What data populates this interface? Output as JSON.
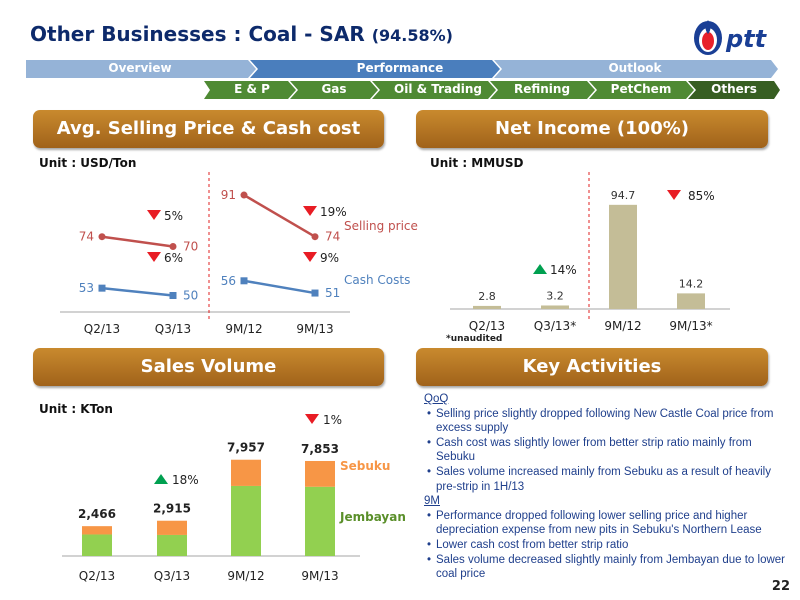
{
  "header": {
    "title": "Other Businesses : Coal - SAR",
    "title_pct": "(94.58%)",
    "logo_text": "ptt"
  },
  "nav": {
    "top": [
      "Overview",
      "Performance",
      "Outlook"
    ],
    "bottom": [
      "E & P",
      "Gas",
      "Oil & Trading",
      "Refining",
      "PetChem",
      "Others"
    ]
  },
  "sections": {
    "price": "Avg. Selling Price & Cash cost",
    "net": "Net Income (100%)",
    "sales": "Sales Volume",
    "key": "Key Activities"
  },
  "units": {
    "price": "Unit : USD/Ton",
    "net": "Unit : MMUSD",
    "sales": "Unit : KTon"
  },
  "chart_data": [
    {
      "type": "line",
      "title": "Avg. Selling Price & Cash cost",
      "unit": "Unit : USD/Ton",
      "categories": [
        "Q2/13",
        "Q3/13",
        "9M/12",
        "9M/13"
      ],
      "series": [
        {
          "name": "Selling price",
          "values": [
            74,
            70,
            91,
            74
          ]
        },
        {
          "name": "Cash Costs",
          "values": [
            53,
            50,
            56,
            51
          ]
        }
      ],
      "annotations": [
        {
          "text": "5%",
          "direction": "down"
        },
        {
          "text": "6%",
          "direction": "down"
        },
        {
          "text": "19%",
          "direction": "down"
        },
        {
          "text": "9%",
          "direction": "down"
        }
      ],
      "grid": false
    },
    {
      "type": "bar",
      "title": "Net Income (100%)",
      "unit": "Unit : MMUSD",
      "categories": [
        "Q2/13",
        "Q3/13*",
        "9M/12",
        "9M/13*"
      ],
      "values": [
        2.8,
        3.2,
        94.7,
        14.2
      ],
      "value_labels": [
        "2.8",
        "3.2",
        "94.7",
        "14.2"
      ],
      "annotations": [
        {
          "text": "14%",
          "direction": "up"
        },
        {
          "text": "85%",
          "direction": "down"
        }
      ],
      "footnote": "*unaudited"
    },
    {
      "type": "bar",
      "stacked": true,
      "title": "Sales Volume",
      "unit": "Unit : KTon",
      "categories": [
        "Q2/13",
        "Q3/13",
        "9M/12",
        "9M/13"
      ],
      "series": [
        {
          "name": "Jembayan",
          "values": [
            1780,
            1740,
            5790,
            5720
          ]
        },
        {
          "name": "Sebuku",
          "values": [
            686,
            1175,
            2167,
            2133
          ]
        }
      ],
      "totals": [
        "2,466",
        "2,915",
        "7,957",
        "7,853"
      ],
      "annotations": [
        {
          "text": "18%",
          "direction": "up"
        },
        {
          "text": "1%",
          "direction": "down"
        }
      ]
    }
  ],
  "key_activities": {
    "qoq_heading": "QoQ",
    "qoq": [
      "Selling price slightly dropped following New Castle Coal price from excess supply",
      "Cash cost was slightly lower from better strip ratio mainly from Sebuku",
      "Sales volume increased mainly from Sebuku as a result of heavily pre-strip in 1H/13"
    ],
    "nm_heading": "9M",
    "nm": [
      "Performance dropped following lower selling price and higher depreciation expense from new pits in Sebuku's Northern Lease",
      "Lower cash cost from better strip ratio",
      "Sales volume decreased slightly mainly from Jembayan due to lower coal price"
    ]
  },
  "page_number": "22",
  "colors": {
    "navy": "#0d2a6b",
    "nav_blue": "#8db3e2",
    "nav_green": "#4e7d32",
    "header_orange": "#b8792a",
    "sell_line": "#c0504d",
    "cash_line": "#4f81bd",
    "bar_tan": "#c4bd97",
    "jembayan": "#92d050",
    "sebuku": "#f79646",
    "arrow_red": "#e81c24",
    "arrow_green": "#00a050",
    "text_blue": "#1f3f8c"
  }
}
